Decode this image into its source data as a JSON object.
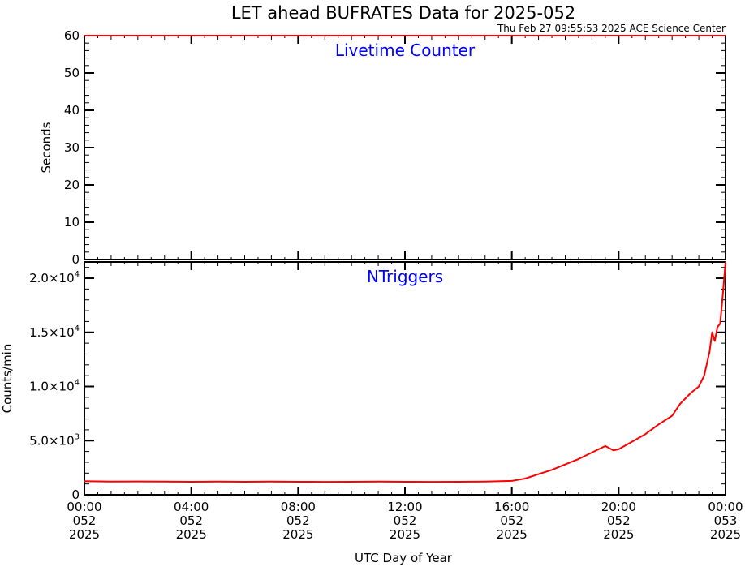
{
  "title": "LET ahead BUFRATES Data for 2025-052",
  "timestamp": "Thu Feb 27 09:55:53 2025 ACE Science Center",
  "xlabel": "UTC Day of Year",
  "x_ticks": [
    {
      "hour": 0,
      "l1": "00:00",
      "l2": "052",
      "l3": "2025"
    },
    {
      "hour": 4,
      "l1": "04:00",
      "l2": "052",
      "l3": "2025"
    },
    {
      "hour": 8,
      "l1": "08:00",
      "l2": "052",
      "l3": "2025"
    },
    {
      "hour": 12,
      "l1": "12:00",
      "l2": "052",
      "l3": "2025"
    },
    {
      "hour": 16,
      "l1": "16:00",
      "l2": "052",
      "l3": "2025"
    },
    {
      "hour": 20,
      "l1": "20:00",
      "l2": "052",
      "l3": "2025"
    },
    {
      "hour": 24,
      "l1": "00:00",
      "l2": "053",
      "l3": "2025"
    }
  ],
  "colors": {
    "data": "#ff0000",
    "panel_title": "#0000ff",
    "axes": "#000000",
    "background": "#ffffff"
  },
  "chart_data": [
    {
      "type": "line",
      "title": "Livetime Counter",
      "ylabel": "Seconds",
      "xlim": [
        0,
        24
      ],
      "ylim": [
        0,
        60
      ],
      "y_ticks": [
        {
          "value": 0,
          "label": "0"
        },
        {
          "value": 10,
          "label": "10"
        },
        {
          "value": 20,
          "label": "20"
        },
        {
          "value": 30,
          "label": "30"
        },
        {
          "value": 40,
          "label": "40"
        },
        {
          "value": 50,
          "label": "50"
        },
        {
          "value": 60,
          "label": "60"
        }
      ],
      "series": [
        {
          "x": [
            0,
            24
          ],
          "y": [
            60,
            60
          ]
        }
      ]
    },
    {
      "type": "line",
      "title": "NTriggers",
      "ylabel": "Counts/min",
      "xlim": [
        0,
        24
      ],
      "ylim": [
        0,
        21500
      ],
      "y_ticks": [
        {
          "value": 0,
          "label": "0"
        },
        {
          "value": 5000,
          "label": "5.0×10",
          "exp": "3"
        },
        {
          "value": 10000,
          "label": "1.0×10",
          "exp": "4"
        },
        {
          "value": 15000,
          "label": "1.5×10",
          "exp": "4"
        },
        {
          "value": 20000,
          "label": "2.0×10",
          "exp": "4"
        }
      ],
      "series": [
        {
          "x": [
            0,
            1,
            2,
            3,
            4,
            5,
            6,
            7,
            8,
            9,
            10,
            11,
            12,
            13,
            14,
            15,
            16,
            16.5,
            17,
            17.5,
            18,
            18.5,
            19,
            19.5,
            19.8,
            20,
            20.5,
            21,
            21.5,
            22,
            22.3,
            22.7,
            23,
            23.2,
            23.4,
            23.5,
            23.6,
            23.7,
            23.8,
            23.9,
            24
          ],
          "y": [
            1250,
            1220,
            1230,
            1210,
            1200,
            1210,
            1200,
            1220,
            1200,
            1190,
            1200,
            1210,
            1200,
            1190,
            1200,
            1220,
            1280,
            1500,
            1900,
            2300,
            2800,
            3300,
            3900,
            4500,
            4100,
            4200,
            4900,
            5600,
            6500,
            7300,
            8400,
            9400,
            10000,
            11000,
            13200,
            15000,
            14200,
            15500,
            15800,
            18500,
            21800
          ]
        }
      ]
    }
  ]
}
